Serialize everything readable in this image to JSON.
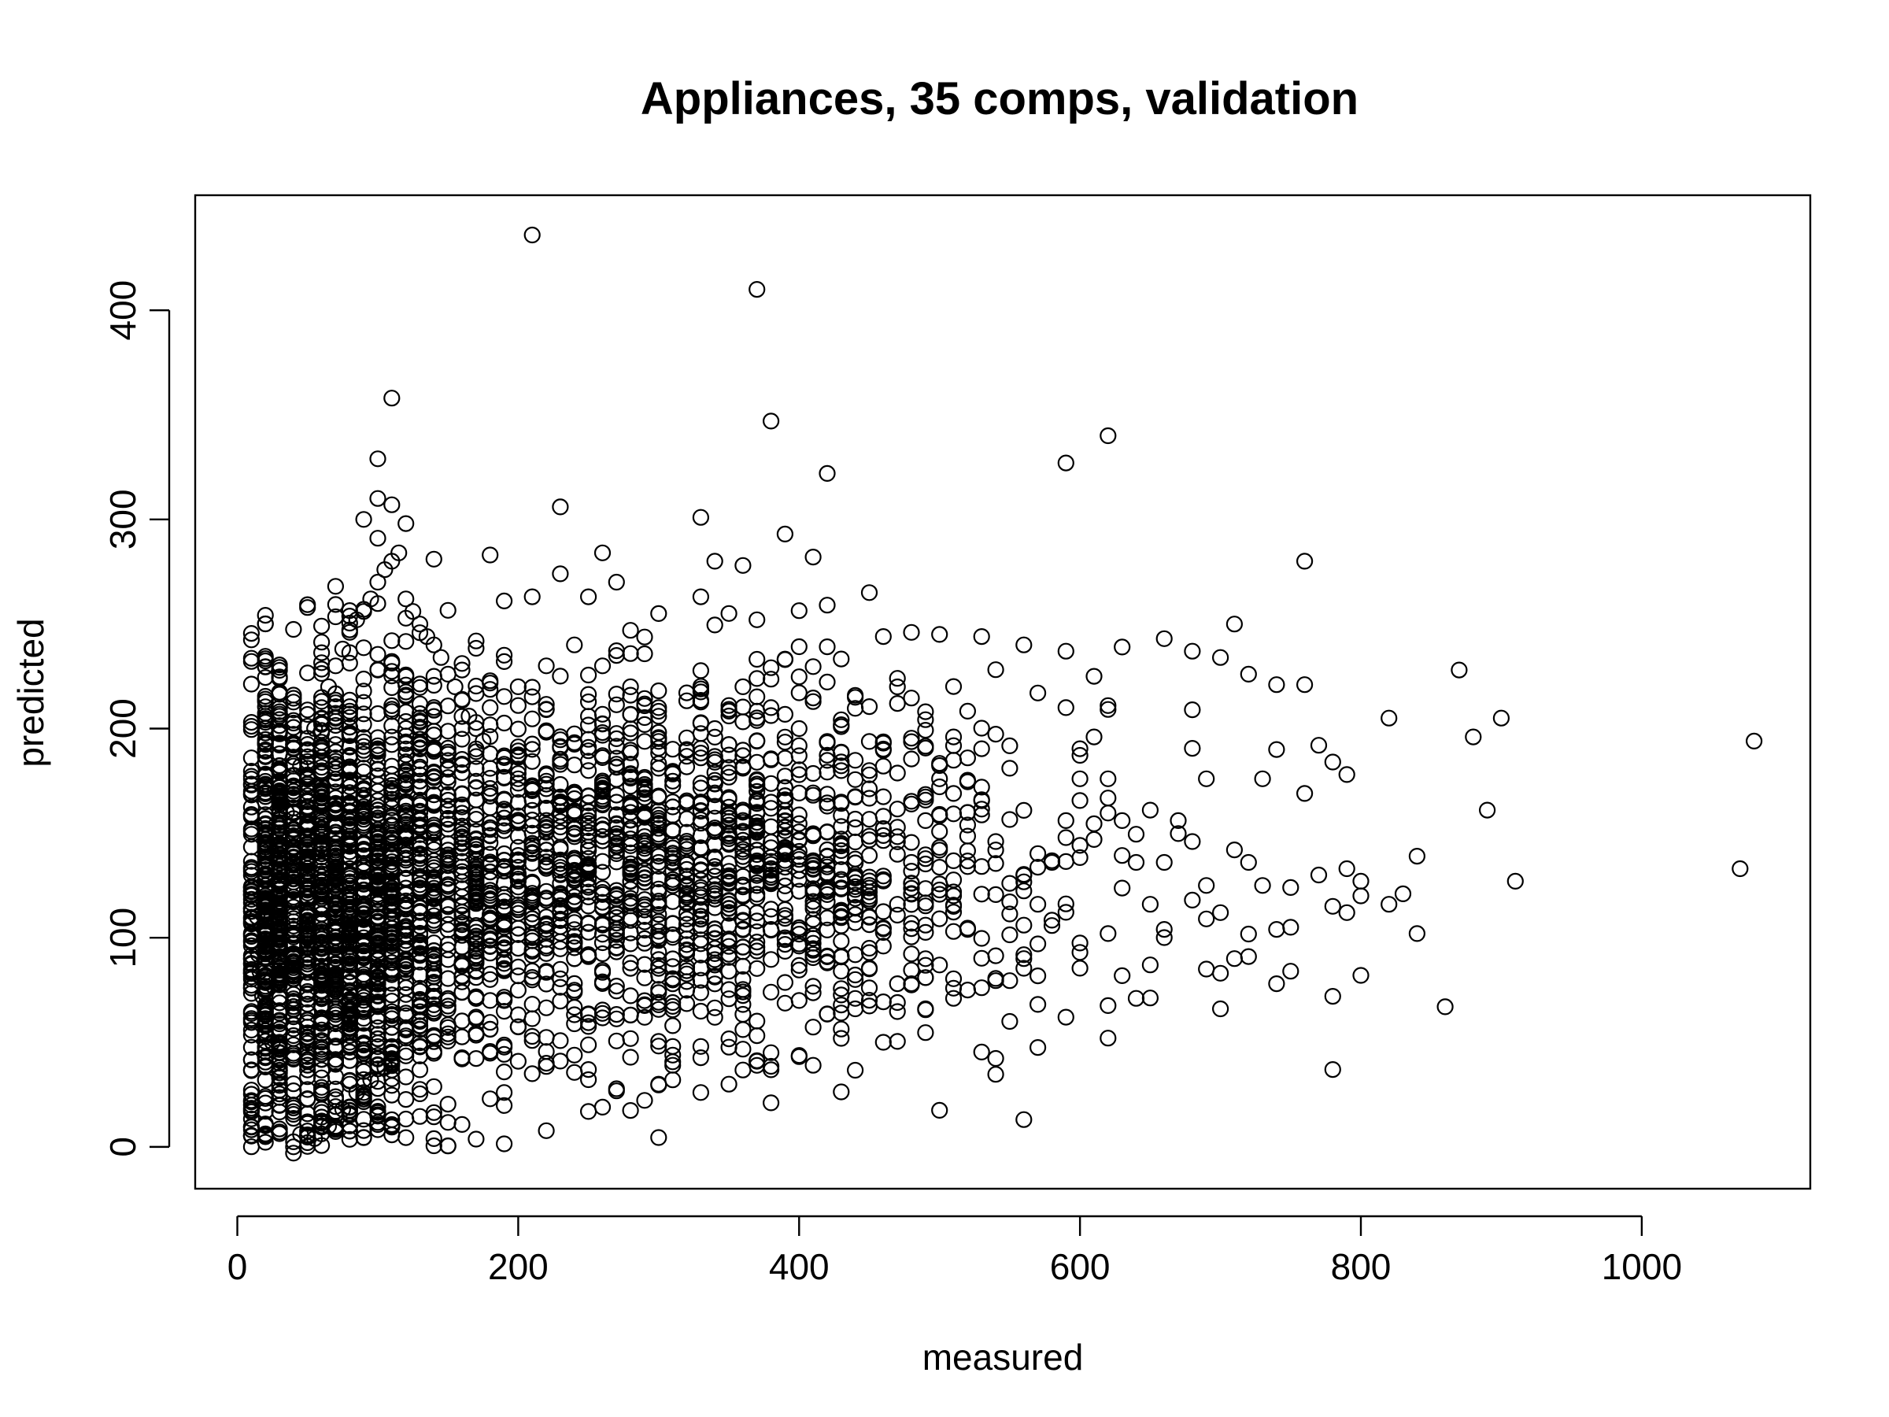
{
  "chart_data": {
    "type": "scatter",
    "title": "Appliances, 35 comps, validation",
    "xlabel": "measured",
    "ylabel": "predicted",
    "xlim": [
      -30,
      1120
    ],
    "ylim": [
      -20,
      455
    ],
    "xticks": [
      0,
      200,
      400,
      600,
      800,
      1000
    ],
    "yticks": [
      0,
      100,
      200,
      300,
      400
    ],
    "grid": false,
    "legend": "none",
    "series": [
      {
        "color": "#000000",
        "marker": "open-circle",
        "points": [
          [
            210,
            436
          ],
          [
            370,
            410
          ],
          [
            110,
            358
          ],
          [
            380,
            347
          ],
          [
            620,
            340
          ],
          [
            100,
            329
          ],
          [
            590,
            327
          ],
          [
            420,
            322
          ],
          [
            100,
            310
          ],
          [
            110,
            307
          ],
          [
            230,
            306
          ],
          [
            90,
            300
          ],
          [
            120,
            298
          ],
          [
            330,
            301
          ],
          [
            390,
            293
          ],
          [
            100,
            291
          ],
          [
            260,
            284
          ],
          [
            180,
            283
          ],
          [
            410,
            282
          ],
          [
            760,
            280
          ],
          [
            360,
            278
          ],
          [
            340,
            280
          ],
          [
            140,
            281
          ],
          [
            230,
            274
          ],
          [
            270,
            270
          ],
          [
            210,
            263
          ],
          [
            250,
            263
          ],
          [
            330,
            263
          ],
          [
            190,
            261
          ],
          [
            450,
            265
          ],
          [
            420,
            259
          ],
          [
            70,
            268
          ],
          [
            300,
            255
          ],
          [
            370,
            252
          ],
          [
            710,
            250
          ],
          [
            60,
            249
          ],
          [
            500,
            245
          ],
          [
            530,
            244
          ],
          [
            460,
            244
          ],
          [
            480,
            246
          ],
          [
            660,
            243
          ],
          [
            560,
            240
          ],
          [
            630,
            239
          ],
          [
            590,
            237
          ],
          [
            680,
            237
          ],
          [
            700,
            234
          ],
          [
            870,
            228
          ],
          [
            720,
            226
          ],
          [
            610,
            225
          ],
          [
            470,
            224
          ],
          [
            740,
            221
          ],
          [
            760,
            221
          ],
          [
            570,
            217
          ],
          [
            590,
            210
          ],
          [
            620,
            211
          ],
          [
            680,
            209
          ],
          [
            900,
            205
          ],
          [
            820,
            205
          ],
          [
            880,
            196
          ],
          [
            1080,
            194
          ],
          [
            770,
            192
          ],
          [
            740,
            190
          ],
          [
            780,
            184
          ],
          [
            790,
            178
          ],
          [
            730,
            176
          ],
          [
            760,
            169
          ],
          [
            690,
            176
          ],
          [
            650,
            161
          ],
          [
            890,
            161
          ],
          [
            710,
            142
          ],
          [
            720,
            136
          ],
          [
            840,
            139
          ],
          [
            1070,
            133
          ],
          [
            910,
            127
          ],
          [
            800,
            127
          ],
          [
            790,
            133
          ],
          [
            770,
            130
          ],
          [
            730,
            125
          ],
          [
            750,
            124
          ],
          [
            690,
            125
          ],
          [
            680,
            118
          ],
          [
            830,
            121
          ],
          [
            820,
            116
          ],
          [
            780,
            115
          ],
          [
            800,
            120
          ],
          [
            790,
            112
          ],
          [
            700,
            112
          ],
          [
            690,
            109
          ],
          [
            660,
            104
          ],
          [
            740,
            104
          ],
          [
            750,
            105
          ],
          [
            840,
            102
          ],
          [
            720,
            91
          ],
          [
            710,
            90
          ],
          [
            690,
            85
          ],
          [
            650,
            87
          ],
          [
            700,
            83
          ],
          [
            800,
            82
          ],
          [
            750,
            84
          ],
          [
            740,
            78
          ],
          [
            780,
            72
          ],
          [
            640,
            71
          ],
          [
            700,
            66
          ],
          [
            860,
            67
          ],
          [
            590,
            62
          ],
          [
            550,
            60
          ],
          [
            620,
            52
          ],
          [
            460,
            50
          ],
          [
            780,
            37
          ],
          [
            410,
            39
          ],
          [
            300,
            30
          ],
          [
            250,
            37
          ],
          [
            260,
            19
          ],
          [
            180,
            23
          ],
          [
            190,
            26
          ],
          [
            230,
            41
          ],
          [
            330,
            26
          ],
          [
            350,
            30
          ],
          [
            330,
            48
          ],
          [
            310,
            48
          ],
          [
            560,
            90
          ],
          [
            600,
            93
          ],
          [
            520,
            75
          ],
          [
            510,
            71
          ],
          [
            480,
            78
          ],
          [
            470,
            69
          ],
          [
            490,
            66
          ],
          [
            440,
            66
          ],
          [
            430,
            64
          ],
          [
            400,
            70
          ],
          [
            380,
            74
          ],
          [
            360,
            80
          ],
          [
            350,
            84
          ],
          [
            340,
            88
          ],
          [
            300,
            82
          ],
          [
            280,
            88
          ],
          [
            240,
            90
          ],
          [
            220,
            84
          ],
          [
            200,
            86
          ],
          [
            180,
            80
          ],
          [
            160,
            74
          ],
          [
            150,
            70
          ],
          [
            140,
            66
          ],
          [
            130,
            58
          ],
          [
            120,
            52
          ],
          [
            110,
            48
          ],
          [
            100,
            42
          ],
          [
            90,
            36
          ],
          [
            80,
            30
          ],
          [
            70,
            24
          ],
          [
            60,
            18
          ],
          [
            50,
            12
          ],
          [
            45,
            6
          ],
          [
            40,
            -3
          ],
          [
            55,
            4
          ],
          [
            65,
            10
          ],
          [
            75,
            18
          ],
          [
            85,
            26
          ],
          [
            95,
            32
          ],
          [
            105,
            38
          ],
          [
            30,
            40
          ],
          [
            25,
            50
          ],
          [
            20,
            60
          ],
          [
            18,
            72
          ],
          [
            16,
            84
          ],
          [
            15,
            92
          ],
          [
            14,
            110
          ],
          [
            20,
            130
          ],
          [
            25,
            140
          ],
          [
            30,
            150
          ],
          [
            35,
            160
          ],
          [
            40,
            170
          ],
          [
            45,
            182
          ],
          [
            50,
            190
          ],
          [
            55,
            200
          ],
          [
            60,
            210
          ],
          [
            65,
            220
          ],
          [
            70,
            230
          ],
          [
            75,
            238
          ],
          [
            80,
            246
          ],
          [
            85,
            252
          ],
          [
            90,
            256
          ],
          [
            95,
            262
          ],
          [
            100,
            270
          ],
          [
            105,
            276
          ],
          [
            110,
            280
          ],
          [
            115,
            284
          ],
          [
            120,
            262
          ],
          [
            125,
            256
          ],
          [
            130,
            250
          ],
          [
            135,
            244
          ],
          [
            140,
            240
          ],
          [
            145,
            234
          ],
          [
            150,
            226
          ],
          [
            155,
            220
          ],
          [
            160,
            214
          ],
          [
            165,
            206
          ],
          [
            170,
            200
          ],
          [
            175,
            194
          ],
          [
            180,
            188
          ],
          [
            190,
            182
          ],
          [
            200,
            176
          ],
          [
            210,
            172
          ],
          [
            220,
            168
          ],
          [
            230,
            164
          ],
          [
            240,
            160
          ],
          [
            250,
            156
          ],
          [
            260,
            152
          ],
          [
            270,
            148
          ],
          [
            280,
            144
          ],
          [
            290,
            140
          ],
          [
            300,
            136
          ],
          [
            310,
            132
          ],
          [
            320,
            128
          ],
          [
            330,
            124
          ],
          [
            340,
            120
          ],
          [
            350,
            116
          ],
          [
            360,
            112
          ],
          [
            370,
            108
          ],
          [
            380,
            104
          ],
          [
            390,
            100
          ],
          [
            400,
            96
          ],
          [
            410,
            92
          ],
          [
            420,
            88
          ],
          [
            430,
            84
          ],
          [
            440,
            80
          ],
          [
            450,
            76
          ],
          [
            460,
            96
          ],
          [
            470,
            116
          ],
          [
            480,
            136
          ],
          [
            490,
            156
          ],
          [
            500,
            176
          ],
          [
            510,
            196
          ],
          [
            520,
            186
          ],
          [
            530,
            166
          ],
          [
            540,
            146
          ],
          [
            550,
            126
          ],
          [
            560,
            106
          ],
          [
            570,
            116
          ],
          [
            580,
            136
          ],
          [
            590,
            156
          ],
          [
            600,
            176
          ],
          [
            610,
            196
          ],
          [
            620,
            176
          ],
          [
            630,
            156
          ],
          [
            640,
            136
          ],
          [
            650,
            116
          ],
          [
            660,
            136
          ],
          [
            670,
            156
          ],
          [
            680,
            146
          ],
          [
            400,
            200
          ],
          [
            380,
            210
          ],
          [
            360,
            220
          ],
          [
            340,
            200
          ],
          [
            320,
            190
          ],
          [
            300,
            210
          ],
          [
            280,
            220
          ],
          [
            260,
            230
          ],
          [
            240,
            240
          ],
          [
            220,
            230
          ],
          [
            200,
            220
          ],
          [
            180,
            210
          ],
          [
            160,
            200
          ],
          [
            140,
            190
          ],
          [
            120,
            180
          ],
          [
            100,
            170
          ],
          [
            80,
            160
          ],
          [
            60,
            150
          ],
          [
            40,
            140
          ],
          [
            20,
            120
          ]
        ]
      }
    ],
    "dense_regions": [
      {
        "x_center": 65,
        "x_spread": 45,
        "y_center": 110,
        "y_spread": 55,
        "count": 1800
      },
      {
        "x_center": 180,
        "x_spread": 110,
        "y_center": 130,
        "y_spread": 45,
        "count": 1100
      },
      {
        "x_center": 330,
        "x_spread": 90,
        "y_center": 140,
        "y_spread": 42,
        "count": 700
      },
      {
        "x_center": 480,
        "x_spread": 80,
        "y_center": 135,
        "y_spread": 40,
        "count": 220
      }
    ]
  }
}
